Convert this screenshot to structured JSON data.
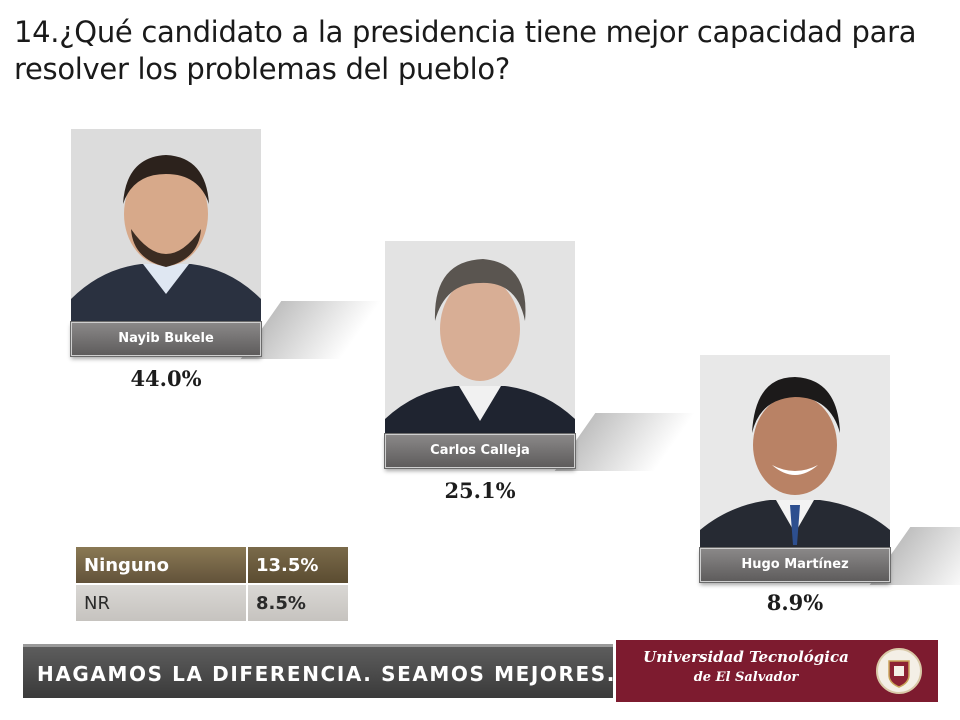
{
  "question": "14.¿Qué candidato a la presidencia tiene mejor capacidad para resolver los problemas del pueblo?",
  "candidates": [
    {
      "name": "Nayib Bukele",
      "value_label": "44.0%"
    },
    {
      "name": "Carlos Calleja",
      "value_label": "25.1%"
    },
    {
      "name": "Hugo Martínez",
      "value_label": "8.9%"
    }
  ],
  "other_table": [
    {
      "label": "Ninguno",
      "value_label": "13.5%"
    },
    {
      "label": "NR",
      "value_label": "8.5%"
    }
  ],
  "footer": {
    "slogan": "HAGAMOS LA DIFERENCIA. SEAMOS MEJORES.",
    "university_line1": "Universidad Tecnológica",
    "university_line2": "de El Salvador"
  },
  "colors": {
    "nameplate": "#6f6d6d",
    "table_header": "#6b5a3c",
    "table_plain": "#d0cdc9",
    "footer_dark": "#474747",
    "university_maroon": "#7d1b2f"
  },
  "chart_data": {
    "type": "bar",
    "categories": [
      "Nayib Bukele",
      "Carlos Calleja",
      "Hugo Martínez",
      "Ninguno",
      "NR"
    ],
    "values": [
      44.0,
      25.1,
      8.9,
      13.5,
      8.5
    ],
    "title": "14.¿Qué candidato a la presidencia tiene mejor capacidad para resolver los problemas del pueblo?",
    "unit": "%"
  }
}
